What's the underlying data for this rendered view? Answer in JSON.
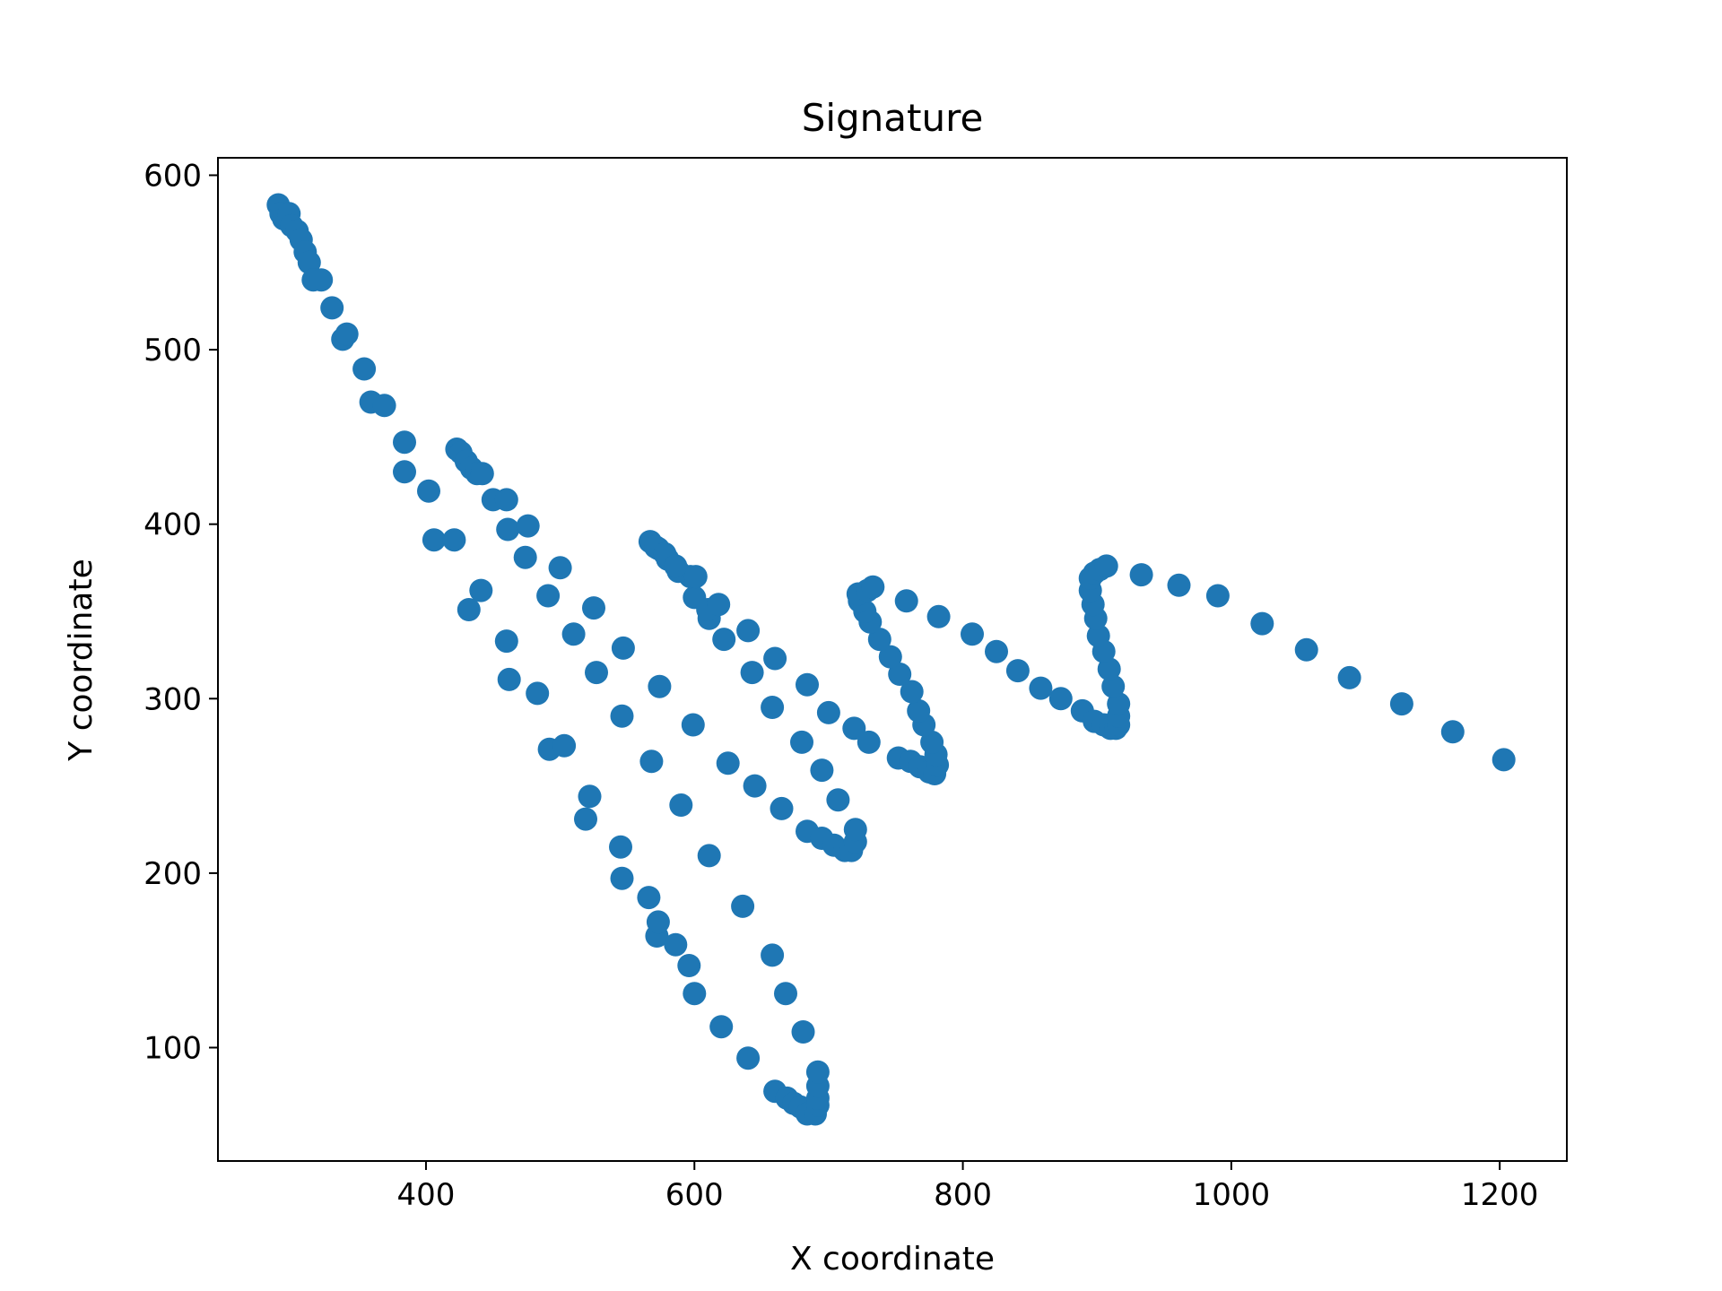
{
  "chart_data": {
    "type": "scatter",
    "title": "Signature",
    "xlabel": "X coordinate",
    "ylabel": "Y coordinate",
    "xlim": [
      245,
      1250
    ],
    "ylim": [
      35,
      610
    ],
    "xticks": [
      400,
      600,
      800,
      1000,
      1200
    ],
    "yticks": [
      100,
      200,
      300,
      400,
      500,
      600
    ],
    "grid": false,
    "legend": "none",
    "marker_color": "#1f77b4",
    "series": [
      {
        "points": [
          [
            290,
            583
          ],
          [
            292,
            578
          ],
          [
            294,
            575
          ],
          [
            298,
            578
          ],
          [
            300,
            571
          ],
          [
            304,
            568
          ],
          [
            307,
            563
          ],
          [
            310,
            556
          ],
          [
            313,
            550
          ],
          [
            316,
            540
          ],
          [
            322,
            540
          ],
          [
            330,
            524
          ],
          [
            338,
            506
          ],
          [
            341,
            509
          ],
          [
            354,
            489
          ],
          [
            359,
            470
          ],
          [
            369,
            468
          ],
          [
            384,
            447
          ],
          [
            384,
            430
          ],
          [
            402,
            419
          ],
          [
            406,
            391
          ],
          [
            421,
            391
          ],
          [
            423,
            443
          ],
          [
            426,
            441
          ],
          [
            430,
            436
          ],
          [
            434,
            432
          ],
          [
            438,
            429
          ],
          [
            442,
            429
          ],
          [
            441,
            362
          ],
          [
            432,
            351
          ],
          [
            450,
            414
          ],
          [
            460,
            414
          ],
          [
            461,
            397
          ],
          [
            474,
            381
          ],
          [
            476,
            399
          ],
          [
            460,
            333
          ],
          [
            462,
            311
          ],
          [
            483,
            303
          ],
          [
            491,
            359
          ],
          [
            500,
            375
          ],
          [
            510,
            337
          ],
          [
            492,
            271
          ],
          [
            503,
            273
          ],
          [
            527,
            315
          ],
          [
            525,
            352
          ],
          [
            547,
            329
          ],
          [
            546,
            290
          ],
          [
            519,
            231
          ],
          [
            522,
            244
          ],
          [
            545,
            215
          ],
          [
            546,
            197
          ],
          [
            566,
            186
          ],
          [
            572,
            164
          ],
          [
            573,
            172
          ],
          [
            586,
            159
          ],
          [
            596,
            147
          ],
          [
            600,
            131
          ],
          [
            620,
            112
          ],
          [
            640,
            94
          ],
          [
            660,
            75
          ],
          [
            669,
            71
          ],
          [
            674,
            68
          ],
          [
            679,
            66
          ],
          [
            684,
            62
          ],
          [
            690,
            62
          ],
          [
            692,
            67
          ],
          [
            692,
            71
          ],
          [
            692,
            78
          ],
          [
            692,
            86
          ],
          [
            681,
            109
          ],
          [
            668,
            131
          ],
          [
            658,
            153
          ],
          [
            636,
            181
          ],
          [
            611,
            210
          ],
          [
            590,
            239
          ],
          [
            568,
            264
          ],
          [
            574,
            307
          ],
          [
            599,
            285
          ],
          [
            625,
            263
          ],
          [
            645,
            250
          ],
          [
            665,
            237
          ],
          [
            684,
            224
          ],
          [
            695,
            220
          ],
          [
            704,
            216
          ],
          [
            712,
            213
          ],
          [
            717,
            213
          ],
          [
            720,
            218
          ],
          [
            720,
            225
          ],
          [
            707,
            242
          ],
          [
            695,
            259
          ],
          [
            680,
            275
          ],
          [
            658,
            295
          ],
          [
            643,
            315
          ],
          [
            622,
            334
          ],
          [
            611,
            346
          ],
          [
            600,
            358
          ],
          [
            597,
            370
          ],
          [
            588,
            373
          ],
          [
            580,
            380
          ],
          [
            573,
            386
          ],
          [
            567,
            390
          ],
          [
            571,
            387
          ],
          [
            578,
            383
          ],
          [
            586,
            376
          ],
          [
            601,
            370
          ],
          [
            610,
            351
          ],
          [
            618,
            354
          ],
          [
            640,
            339
          ],
          [
            660,
            323
          ],
          [
            684,
            308
          ],
          [
            700,
            292
          ],
          [
            719,
            283
          ],
          [
            730,
            275
          ],
          [
            752,
            266
          ],
          [
            761,
            264
          ],
          [
            768,
            261
          ],
          [
            775,
            258
          ],
          [
            779,
            257
          ],
          [
            781,
            262
          ],
          [
            780,
            268
          ],
          [
            777,
            275
          ],
          [
            771,
            285
          ],
          [
            767,
            293
          ],
          [
            762,
            304
          ],
          [
            753,
            314
          ],
          [
            746,
            324
          ],
          [
            738,
            334
          ],
          [
            731,
            344
          ],
          [
            727,
            350
          ],
          [
            723,
            356
          ],
          [
            722,
            360
          ],
          [
            729,
            362
          ],
          [
            733,
            364
          ],
          [
            758,
            356
          ],
          [
            782,
            347
          ],
          [
            807,
            337
          ],
          [
            825,
            327
          ],
          [
            841,
            316
          ],
          [
            858,
            306
          ],
          [
            873,
            300
          ],
          [
            889,
            293
          ],
          [
            898,
            287
          ],
          [
            905,
            285
          ],
          [
            910,
            283
          ],
          [
            914,
            283
          ],
          [
            916,
            285
          ],
          [
            916,
            290
          ],
          [
            916,
            297
          ],
          [
            912,
            307
          ],
          [
            909,
            317
          ],
          [
            905,
            327
          ],
          [
            901,
            336
          ],
          [
            899,
            346
          ],
          [
            897,
            354
          ],
          [
            895,
            362
          ],
          [
            895,
            369
          ],
          [
            898,
            372
          ],
          [
            902,
            374
          ],
          [
            907,
            376
          ],
          [
            933,
            371
          ],
          [
            961,
            365
          ],
          [
            990,
            359
          ],
          [
            1023,
            343
          ],
          [
            1056,
            328
          ],
          [
            1088,
            312
          ],
          [
            1127,
            297
          ],
          [
            1165,
            281
          ],
          [
            1203,
            265
          ]
        ]
      }
    ]
  }
}
